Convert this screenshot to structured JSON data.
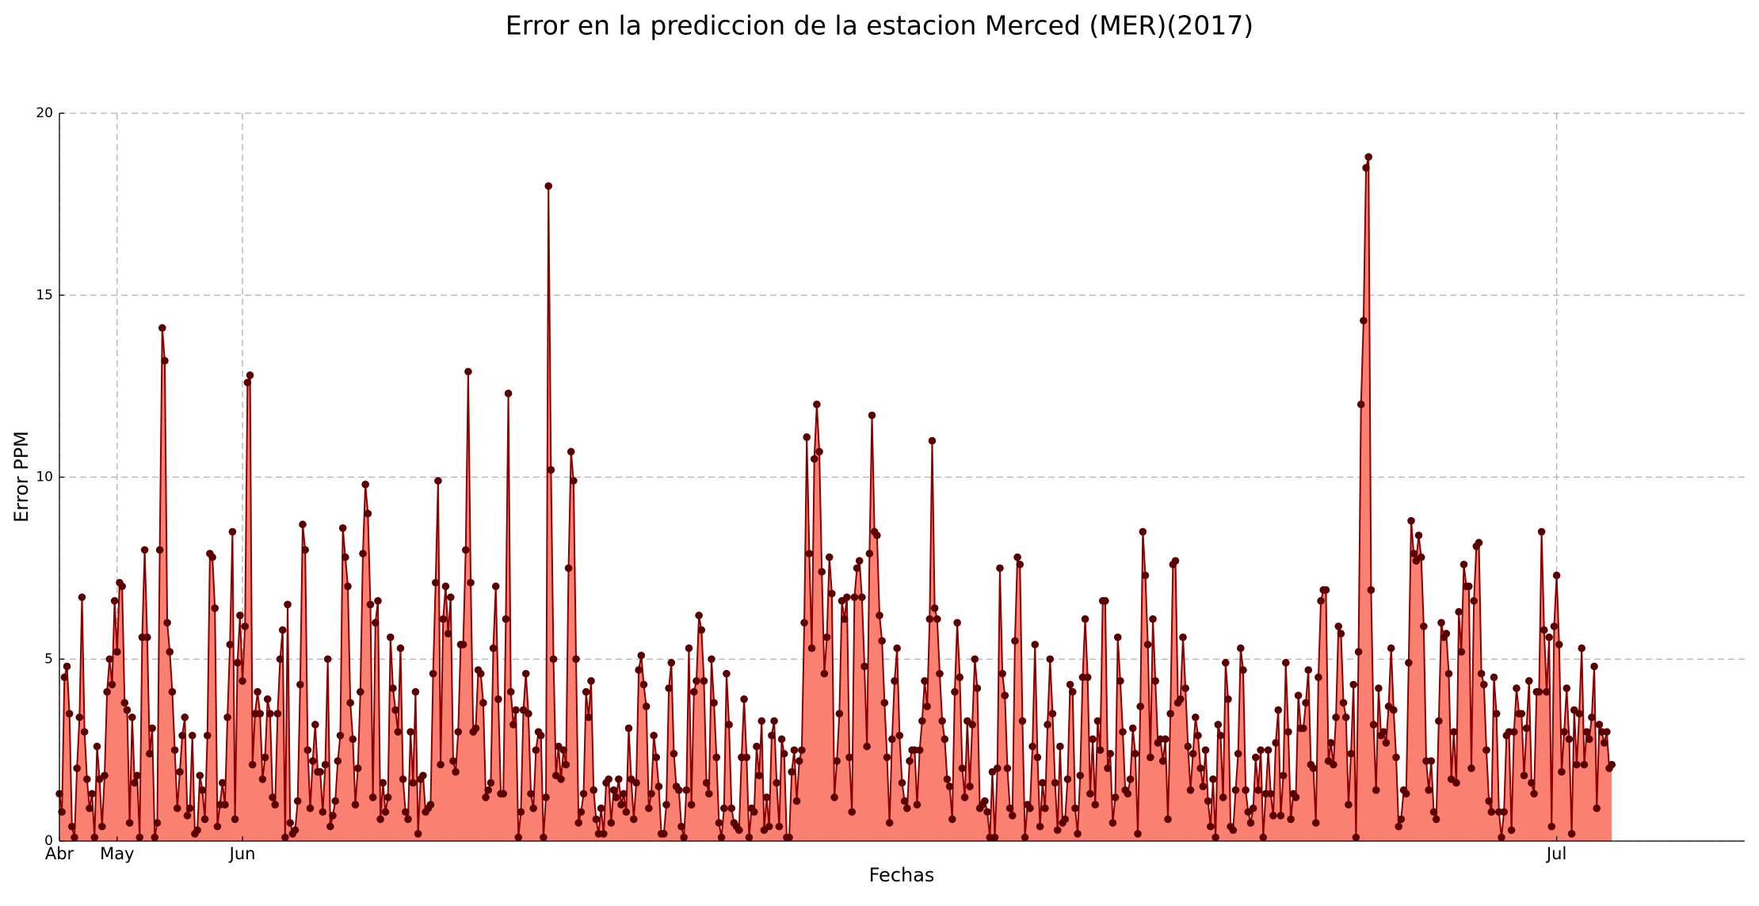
{
  "chart_data": {
    "type": "area-line",
    "title": "Error en la prediccion de la estacion Merced (MER)(2017)",
    "x_label": "Fechas",
    "y_label": "Error PPM",
    "series": [
      {
        "color": "#fa8072",
        "line_color": "#8b0000",
        "marker_color": "#5a0000",
        "values": [
          1.3,
          0.8,
          4.5,
          4.8,
          3.5,
          0.4,
          0.1,
          2.0,
          3.4,
          6.7,
          3.0,
          1.7,
          0.9,
          1.3,
          0.1,
          2.6,
          1.7,
          0.4,
          1.8,
          4.1,
          5.0,
          4.3,
          6.6,
          5.2,
          7.1,
          7.0,
          3.8,
          3.6,
          0.5,
          3.4,
          1.6,
          1.8,
          0.1,
          5.6,
          8.0,
          5.6,
          2.4,
          3.1,
          0.1,
          0.5,
          8.0,
          14.1,
          13.2,
          6.0,
          5.2,
          4.1,
          2.5,
          0.9,
          1.9,
          2.9,
          3.4,
          0.7,
          0.9,
          2.9,
          0.2,
          0.3,
          1.8,
          1.4,
          0.6,
          2.9,
          7.9,
          7.8,
          6.4,
          0.4,
          1.0,
          1.6,
          1.0,
          3.4,
          5.4,
          8.5,
          0.6,
          4.9,
          6.2,
          4.4,
          5.9,
          12.6,
          12.8,
          2.1,
          3.5,
          4.1,
          3.5,
          1.7,
          2.3,
          3.9,
          3.5,
          1.2,
          1.0,
          3.5,
          5.0,
          5.8,
          0.1,
          6.5,
          0.5,
          0.2,
          0.3,
          1.1,
          4.3,
          8.7,
          8.0,
          2.5,
          0.9,
          2.2,
          3.2,
          1.9,
          1.9,
          0.8,
          2.1,
          5.0,
          0.4,
          0.7,
          1.1,
          2.2,
          2.9,
          8.6,
          7.8,
          7.0,
          3.8,
          2.8,
          1.0,
          2.0,
          4.1,
          7.9,
          9.8,
          9.0,
          6.5,
          1.2,
          6.0,
          6.6,
          0.6,
          1.6,
          0.8,
          1.2,
          5.6,
          4.2,
          3.6,
          3.0,
          5.3,
          1.7,
          0.8,
          0.6,
          3.0,
          1.6,
          4.1,
          0.2,
          1.7,
          1.8,
          0.8,
          0.9,
          1.0,
          4.6,
          7.1,
          9.9,
          2.1,
          6.1,
          7.0,
          5.7,
          6.7,
          2.2,
          1.9,
          3.0,
          5.4,
          5.4,
          8.0,
          12.9,
          7.1,
          3.0,
          3.1,
          4.7,
          4.6,
          3.8,
          1.2,
          1.4,
          1.6,
          5.3,
          7.0,
          3.9,
          1.3,
          1.3,
          6.1,
          12.3,
          4.1,
          3.2,
          3.6,
          0.1,
          0.8,
          3.6,
          4.6,
          3.5,
          1.3,
          0.9,
          2.5,
          3.0,
          2.9,
          0.1,
          1.2,
          18.0,
          10.2,
          5.0,
          1.8,
          2.6,
          1.7,
          2.5,
          2.1,
          7.5,
          10.7,
          9.9,
          5.0,
          0.5,
          0.8,
          1.3,
          4.1,
          3.4,
          4.4,
          1.4,
          0.6,
          0.2,
          0.9,
          0.2,
          1.6,
          1.7,
          0.5,
          1.4,
          1.2,
          1.7,
          1.0,
          1.3,
          0.8,
          3.1,
          1.7,
          0.6,
          1.6,
          4.7,
          5.1,
          4.3,
          3.7,
          0.9,
          1.3,
          2.9,
          2.3,
          1.5,
          0.2,
          0.2,
          1.0,
          4.2,
          4.9,
          2.4,
          1.5,
          1.4,
          0.4,
          0.1,
          1.4,
          5.3,
          1.0,
          4.1,
          4.4,
          6.2,
          5.8,
          4.4,
          1.6,
          1.3,
          5.0,
          3.8,
          2.3,
          0.5,
          0.1,
          0.9,
          4.6,
          3.2,
          0.9,
          0.5,
          0.4,
          0.3,
          2.3,
          3.9,
          2.3,
          0.1,
          0.9,
          0.8,
          2.6,
          1.8,
          3.3,
          0.3,
          1.2,
          0.4,
          2.9,
          3.3,
          1.6,
          0.4,
          2.8,
          2.4,
          0.1,
          0.1,
          1.9,
          2.5,
          1.1,
          2.2,
          2.5,
          6.0,
          11.1,
          7.9,
          5.3,
          10.5,
          12.0,
          10.7,
          7.4,
          4.6,
          5.6,
          7.8,
          6.8,
          1.2,
          2.2,
          3.5,
          6.6,
          6.1,
          6.7,
          2.3,
          0.8,
          6.7,
          7.5,
          7.7,
          6.7,
          4.8,
          2.6,
          7.9,
          11.7,
          8.5,
          8.4,
          6.2,
          5.5,
          3.8,
          2.3,
          0.5,
          2.8,
          4.4,
          5.3,
          2.9,
          1.6,
          1.1,
          0.9,
          2.2,
          2.5,
          2.5,
          1.0,
          2.5,
          3.3,
          4.4,
          3.7,
          6.1,
          11.0,
          6.4,
          6.1,
          4.6,
          3.3,
          2.8,
          1.7,
          1.5,
          0.6,
          4.1,
          6.0,
          4.5,
          2.0,
          1.2,
          3.3,
          1.5,
          3.2,
          5.0,
          4.2,
          0.9,
          1.0,
          1.1,
          0.8,
          0.1,
          1.9,
          0.1,
          2.0,
          7.5,
          4.6,
          4.0,
          2.0,
          0.9,
          0.7,
          5.5,
          7.8,
          7.6,
          3.3,
          0.1,
          1.0,
          0.9,
          2.6,
          5.4,
          2.3,
          0.4,
          1.6,
          0.9,
          3.2,
          5.0,
          3.5,
          1.6,
          0.3,
          2.6,
          0.5,
          0.6,
          1.7,
          4.3,
          4.1,
          0.9,
          0.2,
          1.8,
          4.5,
          6.1,
          4.5,
          1.3,
          2.8,
          1.0,
          3.3,
          2.5,
          6.6,
          6.6,
          2.0,
          2.4,
          0.5,
          1.2,
          5.6,
          4.4,
          3.0,
          1.4,
          1.3,
          1.7,
          3.1,
          2.4,
          0.2,
          3.7,
          8.5,
          7.3,
          5.4,
          2.3,
          6.1,
          4.4,
          2.7,
          2.8,
          2.2,
          2.8,
          0.6,
          3.5,
          7.6,
          7.7,
          3.8,
          3.9,
          5.6,
          4.2,
          2.6,
          1.4,
          2.4,
          3.4,
          2.9,
          2.0,
          1.5,
          2.5,
          1.1,
          0.4,
          1.7,
          0.1,
          3.2,
          2.9,
          1.2,
          4.9,
          3.9,
          0.4,
          0.3,
          1.4,
          2.4,
          5.3,
          4.7,
          1.4,
          0.8,
          0.5,
          0.9,
          2.3,
          1.4,
          2.5,
          0.1,
          1.3,
          2.5,
          1.3,
          0.7,
          2.7,
          3.6,
          0.7,
          1.8,
          4.9,
          3.0,
          0.6,
          1.3,
          1.2,
          4.0,
          3.1,
          3.1,
          3.8,
          4.7,
          2.1,
          2.0,
          0.5,
          4.5,
          6.6,
          6.9,
          6.9,
          2.2,
          2.7,
          2.1,
          3.4,
          5.9,
          5.7,
          3.8,
          3.4,
          1.0,
          2.4,
          4.3,
          0.1,
          5.2,
          12.0,
          14.3,
          18.5,
          18.8,
          6.9,
          3.2,
          1.4,
          4.2,
          2.9,
          3.0,
          2.7,
          3.7,
          5.3,
          3.6,
          2.3,
          0.4,
          0.6,
          1.4,
          1.3,
          4.9,
          8.8,
          7.9,
          7.7,
          8.4,
          7.8,
          5.9,
          2.2,
          1.4,
          2.2,
          0.8,
          0.6,
          3.3,
          6.0,
          5.6,
          5.7,
          4.6,
          1.7,
          3.0,
          1.6,
          6.3,
          5.2,
          7.6,
          7.0,
          7.0,
          2.0,
          6.6,
          8.1,
          8.2,
          4.6,
          4.3,
          2.5,
          1.1,
          0.8,
          4.5,
          3.5,
          0.8,
          0.1,
          0.8,
          2.9,
          3.0,
          0.3,
          3.0,
          4.2,
          3.5,
          3.5,
          1.8,
          3.1,
          4.4,
          1.6,
          1.3,
          4.1,
          4.1,
          8.5,
          5.8,
          4.1,
          5.6,
          0.4,
          5.9,
          7.3,
          5.4,
          1.9,
          3.0,
          4.2,
          2.8,
          0.2,
          3.6,
          2.1,
          3.5,
          5.3,
          2.1,
          3.0,
          2.8,
          3.4,
          4.8,
          0.9,
          3.2,
          3.0,
          2.7,
          3.0,
          2.0,
          2.1
        ]
      }
    ],
    "xlim": [
      0,
      672
    ],
    "xticks": [
      {
        "value": 0,
        "label": "Abr"
      },
      {
        "value": 23,
        "label": "May"
      },
      {
        "value": 73,
        "label": "Jun"
      },
      {
        "value": 597,
        "label": "Jul"
      }
    ],
    "ylim": [
      0,
      20
    ],
    "yticks": [
      0,
      5,
      10,
      15,
      20
    ],
    "grid": true
  }
}
